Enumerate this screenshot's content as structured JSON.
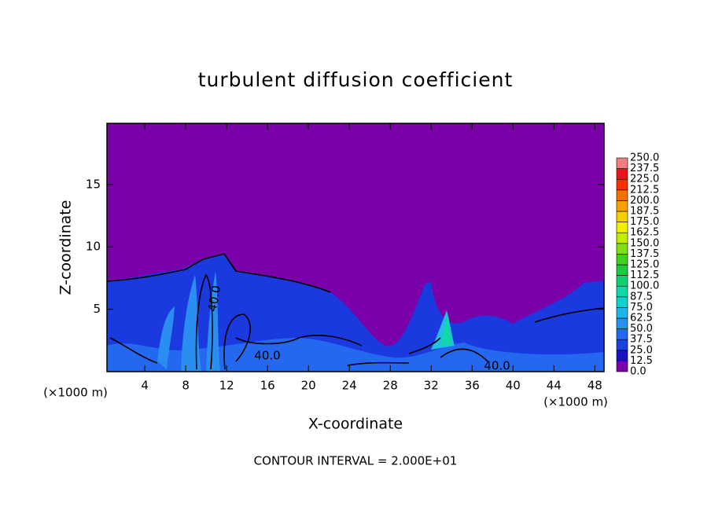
{
  "chart_data": {
    "type": "contour",
    "title": "turbulent diffusion coefficient",
    "x_label": "X-coordinate",
    "y_label": "Z-coordinate",
    "x_unit": "(×1000 m)",
    "footer": "CONTOUR INTERVAL = 2.000E+01",
    "contour_labels": [
      "40.0",
      "40.0",
      "40.0"
    ],
    "xlim": [
      0.3,
      48.9
    ],
    "ylim": [
      0,
      19.9
    ],
    "xticks": [
      4,
      8,
      12,
      16,
      20,
      24,
      28,
      32,
      36,
      40,
      44,
      48
    ],
    "yticks": [
      5,
      10,
      15
    ],
    "colorbar": {
      "levels": [
        {
          "value": 0,
          "label": "0.0"
        },
        12.5,
        {
          "value": 25,
          "label": "25.0"
        },
        37.5,
        {
          "value": 50,
          "label": "50.0"
        },
        62.5,
        {
          "value": 75,
          "label": "75.0"
        },
        87.5,
        {
          "value": 100,
          "label": "100.0"
        },
        112.5,
        {
          "value": 125,
          "label": "125.0"
        },
        137.5,
        {
          "value": 150,
          "label": "150.0"
        },
        162.5,
        {
          "value": 175,
          "label": "175.0"
        },
        187.5,
        {
          "value": 200,
          "label": "200.0"
        },
        212.5,
        {
          "value": 225,
          "label": "225.0"
        },
        237.5,
        {
          "value": 250,
          "label": "250.0"
        }
      ],
      "colors": [
        "#7a00aa",
        "#1a10c0",
        "#1a40e0",
        "#2068f0",
        "#2890f0",
        "#20b4e8",
        "#10d0d0",
        "#10d8a8",
        "#10d070",
        "#20c840",
        "#40d020",
        "#80e010",
        "#c0f000",
        "#f0f000",
        "#f8d000",
        "#f8a000",
        "#f87000",
        "#f83000",
        "#f01020",
        "#f08080"
      ]
    }
  }
}
